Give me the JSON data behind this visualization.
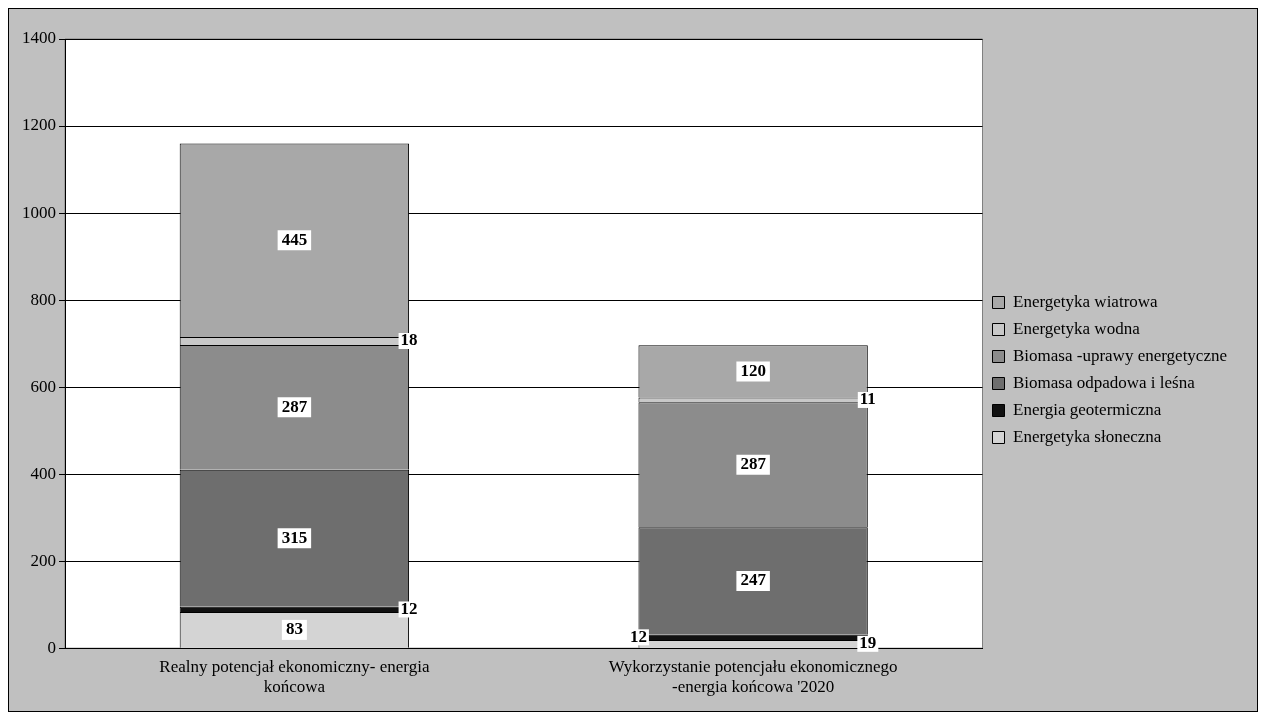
{
  "chart_data": {
    "type": "bar",
    "stacked": true,
    "categories": [
      "Realny potencjał ekonomiczny- energia końcowa",
      "Wykorzystanie potencjału ekonomicznego -energia końcowa '2020"
    ],
    "series": [
      {
        "name": "Energetyka słoneczna",
        "color": "#d4d4d4",
        "values": [
          83,
          19
        ]
      },
      {
        "name": "Energia geotermiczna",
        "color": "#111111",
        "values": [
          12,
          12
        ]
      },
      {
        "name": "Biomasa odpadowa i leśna",
        "color": "#6e6e6e",
        "values": [
          315,
          247
        ]
      },
      {
        "name": "Biomasa -uprawy energetyczne",
        "color": "#8c8c8c",
        "values": [
          287,
          287
        ]
      },
      {
        "name": "Energetyka wodna",
        "color": "#c8c8c8",
        "values": [
          18,
          11
        ]
      },
      {
        "name": "Energetyka wiatrowa",
        "color": "#a8a8a8",
        "values": [
          445,
          120
        ]
      }
    ],
    "ylim": [
      0,
      1400
    ],
    "yticks": [
      0,
      200,
      400,
      600,
      800,
      1000,
      1200,
      1400
    ],
    "grid": "y",
    "legend": "right",
    "data_labels": true
  }
}
